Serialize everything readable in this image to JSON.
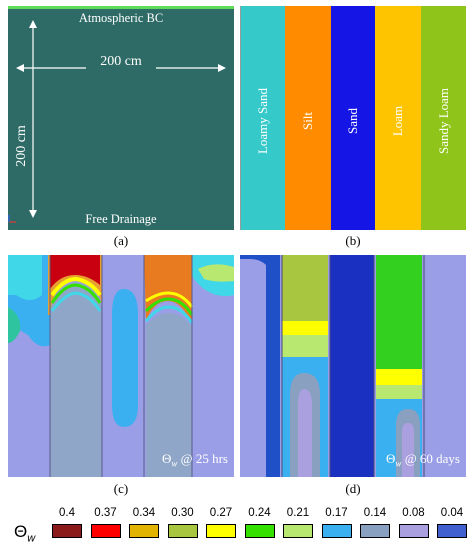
{
  "panel_a": {
    "top_label": "Atmospheric BC",
    "width_label": "200 cm",
    "height_label": "200 cm",
    "bottom_label": "Free Drainage",
    "colors": {
      "domain": "#2e6b66",
      "top_boundary": "#5fdc57"
    }
  },
  "panel_b": {
    "columns": [
      {
        "label": "Loamy Sand",
        "color": "#35c9c9"
      },
      {
        "label": "Silt",
        "color": "#ff8c00"
      },
      {
        "label": "Sand",
        "color": "#1515e6"
      },
      {
        "label": "Loam",
        "color": "#ffc400"
      },
      {
        "label": "Sandy Loam",
        "color": "#8fc51a"
      }
    ]
  },
  "panel_c": {
    "annotation_theta": "Θ",
    "annotation_sub": "w",
    "annotation_rest": " @ 25 hrs"
  },
  "panel_d": {
    "annotation_theta": "Θ",
    "annotation_sub": "w",
    "annotation_rest": " @ 60 days"
  },
  "captions": {
    "a": "(a)",
    "b": "(b)",
    "c": "(c)",
    "d": "(d)"
  },
  "legend": {
    "symbol": "Θ",
    "symbol_sub": "w",
    "entries": [
      {
        "label": "0.4",
        "color": "#8b1a1a"
      },
      {
        "label": "0.37",
        "color": "#ff0000"
      },
      {
        "label": "0.34",
        "color": "#e0b400"
      },
      {
        "label": "0.30",
        "color": "#a8c640"
      },
      {
        "label": "0.27",
        "color": "#ffff00"
      },
      {
        "label": "0.24",
        "color": "#33e000"
      },
      {
        "label": "0.21",
        "color": "#b8e870"
      },
      {
        "label": "0.17",
        "color": "#3ab0f0"
      },
      {
        "label": "0.14",
        "color": "#8aa0c0"
      },
      {
        "label": "0.08",
        "color": "#aaa0e0"
      },
      {
        "label": "0.04",
        "color": "#4060d0"
      }
    ]
  }
}
